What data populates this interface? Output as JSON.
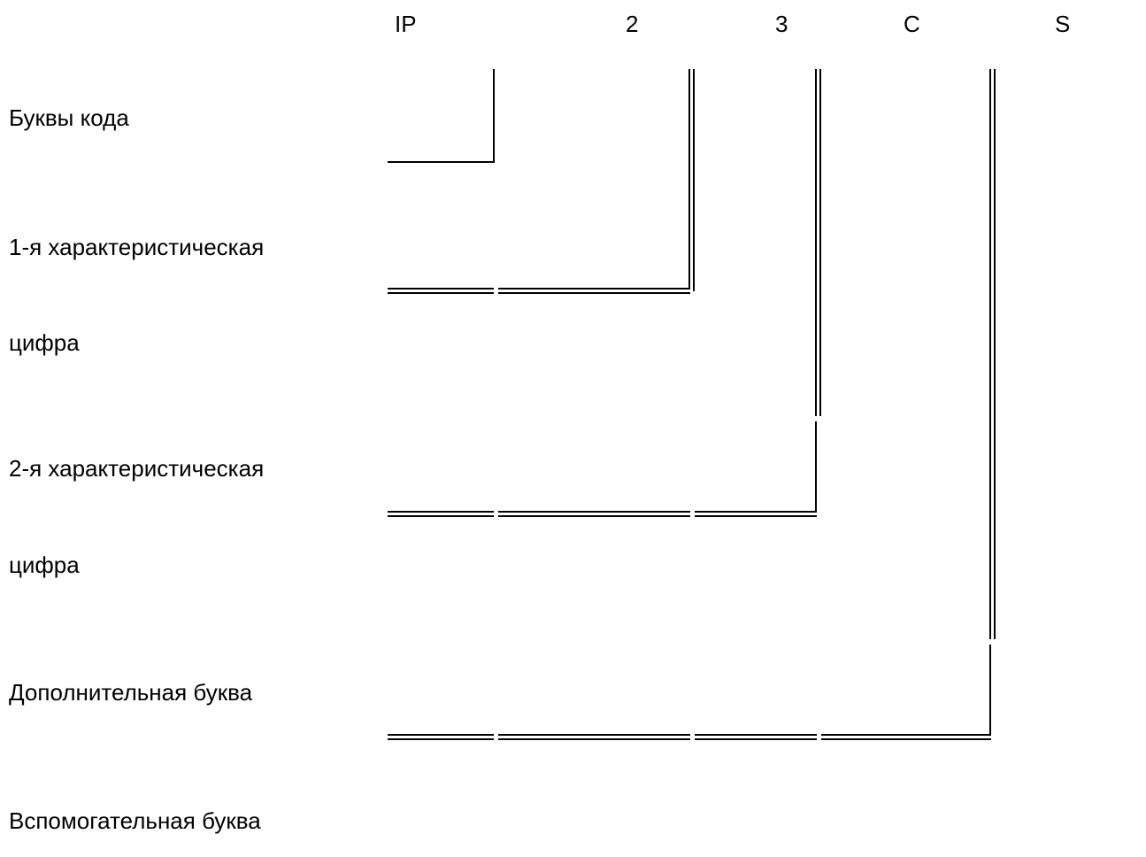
{
  "code": {
    "ip": "IP",
    "digit1": "2",
    "digit2": "3",
    "extra_letter": "C",
    "aux_letter": "S"
  },
  "labels": {
    "letters": "Буквы кода",
    "first_digit_line1": "1-я характеристическая",
    "first_digit_line2": "цифра",
    "second_digit_line1": "2-я характеристическая",
    "second_digit_line2": "цифра",
    "additional_letter": "Дополнительная буква",
    "auxiliary_letter": "Вспомогательная буква"
  }
}
